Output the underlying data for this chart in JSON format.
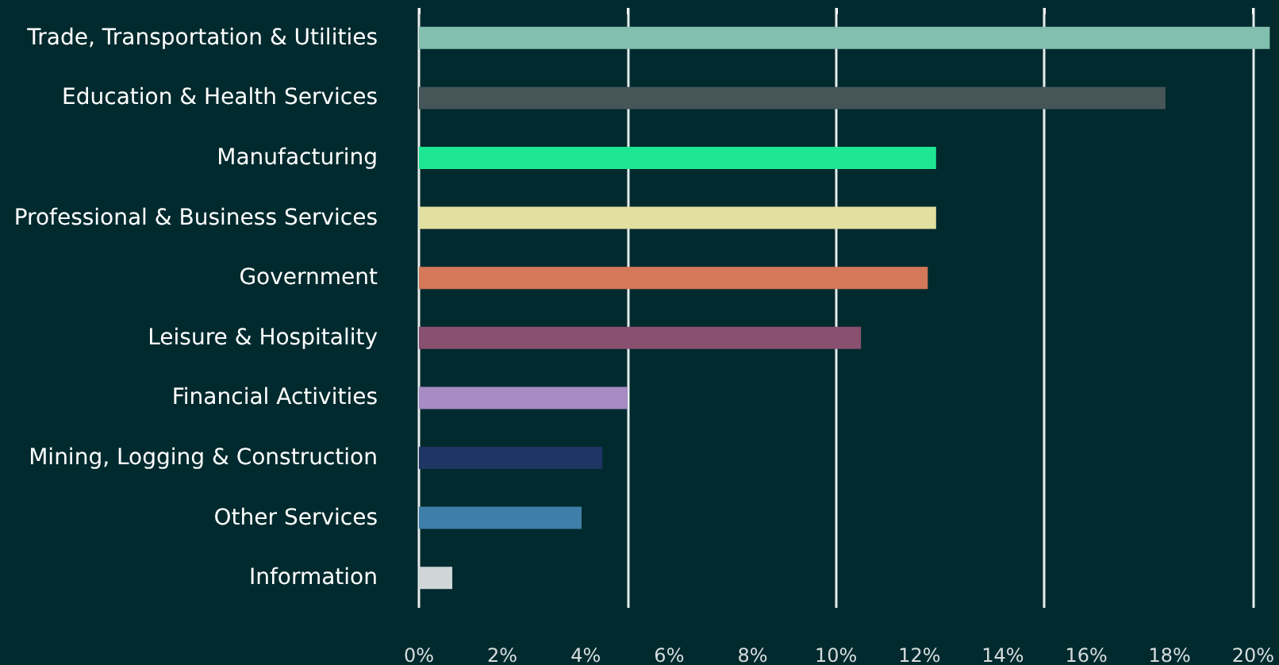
{
  "chart_data": {
    "type": "bar",
    "orientation": "horizontal",
    "categories": [
      "Trade, Transportation & Utilities",
      "Education & Health Services",
      "Manufacturing",
      "Professional & Business Services",
      "Government",
      "Leisure & Hospitality",
      "Financial Activities",
      "Mining, Logging & Construction",
      "Other Services",
      "Information"
    ],
    "values": [
      20.4,
      17.9,
      12.4,
      12.4,
      12.2,
      10.6,
      5.0,
      4.4,
      3.9,
      0.8
    ],
    "colors": [
      "#82bfae",
      "#455558",
      "#1ee693",
      "#e2e0a0",
      "#d4785a",
      "#8a5070",
      "#a68bc4",
      "#1f3564",
      "#3f7ea8",
      "#d0d6d7"
    ],
    "xlim": [
      0,
      20.4
    ],
    "xticks": [
      {
        "value": 0,
        "label": "0%"
      },
      {
        "value": 2,
        "label": "2%"
      },
      {
        "value": 4,
        "label": "4%"
      },
      {
        "value": 5,
        "label": null
      },
      {
        "value": 6,
        "label": "6%"
      },
      {
        "value": 8,
        "label": "8%"
      },
      {
        "value": 10,
        "label": "10%"
      },
      {
        "value": 12,
        "label": "12%"
      },
      {
        "value": 14,
        "label": "14%"
      },
      {
        "value": 15,
        "label": null
      },
      {
        "value": 16,
        "label": "16%"
      },
      {
        "value": 18,
        "label": "18%"
      },
      {
        "value": 20,
        "label": "20%"
      }
    ],
    "grid": "x"
  }
}
